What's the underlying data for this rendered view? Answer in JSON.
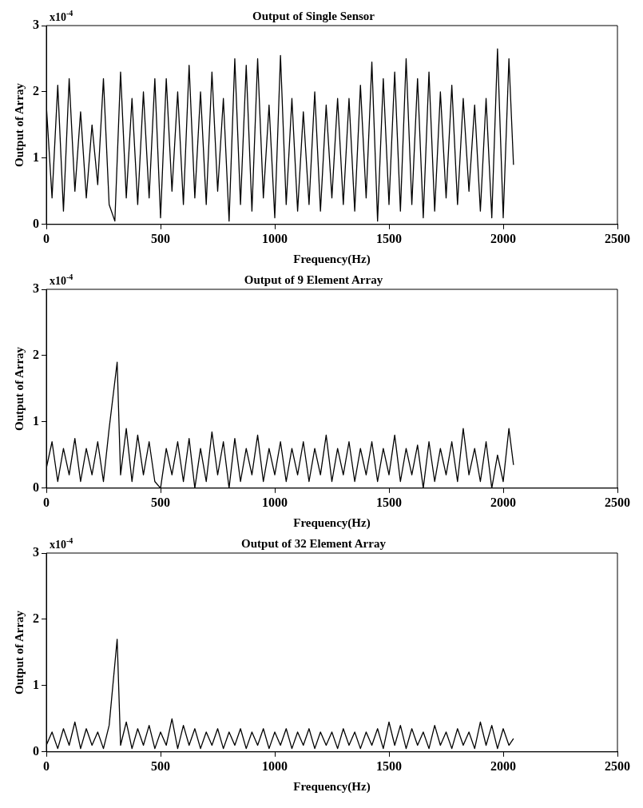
{
  "chart_data": [
    {
      "type": "line",
      "title": "Output of Single Sensor",
      "xlabel": "Frequency(Hz)",
      "ylabel": "Output of Array",
      "annotations": [
        "x10$^{-4}$"
      ],
      "grid": false,
      "legend": false,
      "marker": "none",
      "line_style": "solid",
      "xlim": [
        0,
        2500
      ],
      "xticks": [
        0,
        500,
        1000,
        1500,
        2000,
        2500
      ],
      "ylim": [
        0,
        3
      ],
      "yticks": [
        0,
        1,
        2,
        3
      ],
      "x": [
        0,
        25,
        50,
        75,
        100,
        125,
        150,
        175,
        200,
        225,
        250,
        275,
        300,
        325,
        350,
        375,
        400,
        425,
        450,
        475,
        500,
        525,
        550,
        575,
        600,
        625,
        650,
        675,
        700,
        725,
        750,
        775,
        800,
        825,
        850,
        875,
        900,
        925,
        950,
        975,
        1000,
        1025,
        1050,
        1075,
        1100,
        1125,
        1150,
        1175,
        1200,
        1225,
        1250,
        1275,
        1300,
        1325,
        1350,
        1375,
        1400,
        1425,
        1450,
        1475,
        1500,
        1525,
        1550,
        1575,
        1600,
        1625,
        1650,
        1675,
        1700,
        1725,
        1750,
        1775,
        1800,
        1825,
        1850,
        1875,
        1900,
        1925,
        1950,
        1975,
        2000,
        2025,
        2045
      ],
      "series": [
        {
          "color": "#000000",
          "values": [
            1.8,
            0.4,
            2.1,
            0.2,
            2.2,
            0.5,
            1.7,
            0.4,
            1.5,
            0.6,
            2.2,
            0.3,
            0.05,
            2.3,
            0.4,
            1.9,
            0.3,
            2.0,
            0.4,
            2.2,
            0.1,
            2.2,
            0.5,
            2.0,
            0.3,
            2.4,
            0.4,
            2.0,
            0.3,
            2.3,
            0.5,
            1.9,
            0.05,
            2.5,
            0.3,
            2.4,
            0.2,
            2.5,
            0.4,
            1.8,
            0.1,
            2.55,
            0.3,
            1.9,
            0.2,
            1.7,
            0.3,
            2.0,
            0.2,
            1.8,
            0.4,
            1.9,
            0.3,
            1.9,
            0.2,
            2.1,
            0.4,
            2.45,
            0.05,
            2.2,
            0.3,
            2.3,
            0.2,
            2.5,
            0.3,
            2.2,
            0.1,
            2.3,
            0.2,
            2.0,
            0.4,
            2.1,
            0.3,
            1.9,
            0.5,
            1.8,
            0.2,
            1.9,
            0.1,
            2.65,
            0.1,
            2.5,
            0.9
          ]
        }
      ]
    },
    {
      "type": "line",
      "title": "Output of 9 Element Array",
      "xlabel": "Frequency(Hz)",
      "ylabel": "Output of Array",
      "annotations": [
        "x10$^{-4}$"
      ],
      "grid": false,
      "legend": false,
      "marker": "none",
      "line_style": "solid",
      "xlim": [
        0,
        2500
      ],
      "xticks": [
        0,
        500,
        1000,
        1500,
        2000,
        2500
      ],
      "ylim": [
        0,
        3
      ],
      "yticks": [
        0,
        1,
        2,
        3
      ],
      "x": [
        0,
        25,
        50,
        75,
        100,
        125,
        150,
        175,
        200,
        225,
        250,
        275,
        310,
        325,
        350,
        375,
        400,
        425,
        450,
        475,
        500,
        525,
        550,
        575,
        600,
        625,
        650,
        675,
        700,
        725,
        750,
        775,
        800,
        825,
        850,
        875,
        900,
        925,
        950,
        975,
        1000,
        1025,
        1050,
        1075,
        1100,
        1125,
        1150,
        1175,
        1200,
        1225,
        1250,
        1275,
        1300,
        1325,
        1350,
        1375,
        1400,
        1425,
        1450,
        1475,
        1500,
        1525,
        1550,
        1575,
        1600,
        1625,
        1650,
        1675,
        1700,
        1725,
        1750,
        1775,
        1800,
        1825,
        1850,
        1875,
        1900,
        1925,
        1950,
        1975,
        2000,
        2025,
        2045
      ],
      "series": [
        {
          "color": "#000000",
          "values": [
            0.3,
            0.7,
            0.1,
            0.6,
            0.2,
            0.75,
            0.1,
            0.6,
            0.2,
            0.7,
            0.1,
            0.9,
            1.9,
            0.2,
            0.9,
            0.1,
            0.8,
            0.2,
            0.7,
            0.1,
            0.0,
            0.6,
            0.2,
            0.7,
            0.1,
            0.75,
            0.0,
            0.6,
            0.1,
            0.85,
            0.2,
            0.7,
            0.0,
            0.75,
            0.1,
            0.6,
            0.2,
            0.8,
            0.1,
            0.6,
            0.2,
            0.7,
            0.1,
            0.6,
            0.2,
            0.7,
            0.1,
            0.6,
            0.2,
            0.8,
            0.1,
            0.6,
            0.2,
            0.7,
            0.1,
            0.6,
            0.2,
            0.7,
            0.1,
            0.6,
            0.2,
            0.8,
            0.1,
            0.6,
            0.2,
            0.65,
            0.0,
            0.7,
            0.1,
            0.6,
            0.2,
            0.7,
            0.1,
            0.9,
            0.2,
            0.6,
            0.1,
            0.7,
            0.0,
            0.5,
            0.1,
            0.9,
            0.35
          ]
        }
      ]
    },
    {
      "type": "line",
      "title": "Output of 32 Element Array",
      "xlabel": "Frequency(Hz)",
      "ylabel": "Output of Array",
      "annotations": [
        "x10$^{-4}$"
      ],
      "grid": false,
      "legend": false,
      "marker": "none",
      "line_style": "solid",
      "xlim": [
        0,
        2500
      ],
      "xticks": [
        0,
        500,
        1000,
        1500,
        2000,
        2500
      ],
      "ylim": [
        0,
        3
      ],
      "yticks": [
        0,
        1,
        2,
        3
      ],
      "x": [
        0,
        25,
        50,
        75,
        100,
        125,
        150,
        175,
        200,
        225,
        250,
        275,
        310,
        325,
        350,
        375,
        400,
        425,
        450,
        475,
        500,
        525,
        550,
        575,
        600,
        625,
        650,
        675,
        700,
        725,
        750,
        775,
        800,
        825,
        850,
        875,
        900,
        925,
        950,
        975,
        1000,
        1025,
        1050,
        1075,
        1100,
        1125,
        1150,
        1175,
        1200,
        1225,
        1250,
        1275,
        1300,
        1325,
        1350,
        1375,
        1400,
        1425,
        1450,
        1475,
        1500,
        1525,
        1550,
        1575,
        1600,
        1625,
        1650,
        1675,
        1700,
        1725,
        1750,
        1775,
        1800,
        1825,
        1850,
        1875,
        1900,
        1925,
        1950,
        1975,
        2000,
        2025,
        2045
      ],
      "series": [
        {
          "color": "#000000",
          "values": [
            0.1,
            0.3,
            0.05,
            0.35,
            0.1,
            0.45,
            0.05,
            0.35,
            0.1,
            0.3,
            0.05,
            0.4,
            1.7,
            0.1,
            0.45,
            0.05,
            0.35,
            0.1,
            0.4,
            0.05,
            0.3,
            0.1,
            0.5,
            0.05,
            0.4,
            0.1,
            0.35,
            0.05,
            0.3,
            0.1,
            0.35,
            0.05,
            0.3,
            0.1,
            0.35,
            0.05,
            0.3,
            0.1,
            0.35,
            0.05,
            0.3,
            0.1,
            0.35,
            0.05,
            0.3,
            0.1,
            0.35,
            0.05,
            0.3,
            0.1,
            0.3,
            0.05,
            0.35,
            0.1,
            0.3,
            0.05,
            0.3,
            0.1,
            0.35,
            0.05,
            0.45,
            0.1,
            0.4,
            0.05,
            0.35,
            0.1,
            0.3,
            0.05,
            0.4,
            0.1,
            0.3,
            0.05,
            0.35,
            0.1,
            0.3,
            0.05,
            0.45,
            0.1,
            0.4,
            0.05,
            0.35,
            0.1,
            0.2
          ]
        }
      ]
    }
  ]
}
